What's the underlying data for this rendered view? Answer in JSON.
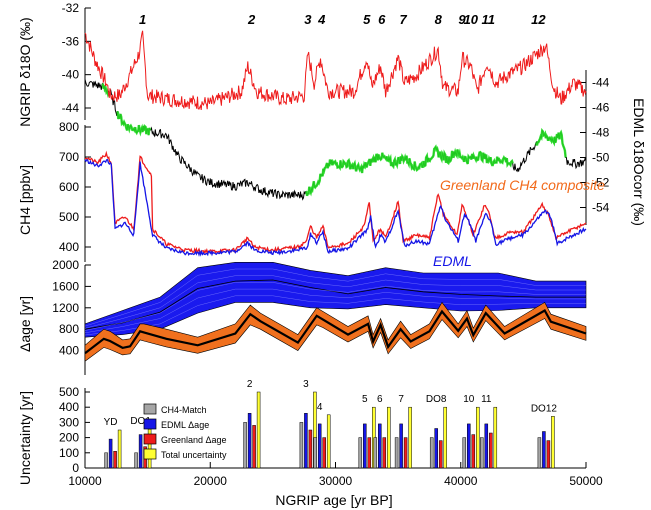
{
  "colors": {
    "red": "#ee1c1c",
    "black": "#000000",
    "green": "#22dd22",
    "blue": "#1515e6",
    "orange": "#f26a1b",
    "gray": "#a6a6a6",
    "yellow": "#ffff33",
    "bluefill": "#1a1aee",
    "orangefill": "#f0701e"
  },
  "chart_data": {
    "type": "line",
    "xlabel": "NGRIP age [yr BP]",
    "xlim": [
      10000,
      50000
    ],
    "xticks": [
      "10000",
      "20000",
      "30000",
      "40000",
      "50000"
    ],
    "do_labels": [
      {
        "t": "1",
        "x": 14600
      },
      {
        "t": "2",
        "x": 23300
      },
      {
        "t": "3",
        "x": 27800
      },
      {
        "t": "4",
        "x": 28900
      },
      {
        "t": "5",
        "x": 32500
      },
      {
        "t": "6",
        "x": 33700
      },
      {
        "t": "7",
        "x": 35400
      },
      {
        "t": "8",
        "x": 38200
      },
      {
        "t": "9",
        "x": 40100
      },
      {
        "t": "10",
        "x": 40800
      },
      {
        "t": "11",
        "x": 42200
      },
      {
        "t": "12",
        "x": 46200
      }
    ],
    "panels": {
      "ngrip": {
        "ylabel": "NGRIP δ18O (‰)",
        "ylim": [
          -44,
          -32
        ],
        "yticks": [
          "-32",
          "-36",
          "-40",
          "-44"
        ],
        "series_red_nodes": [
          [
            10000,
            -35
          ],
          [
            10800,
            -38.2
          ],
          [
            11700,
            -41
          ],
          [
            12000,
            -42.5
          ],
          [
            12800,
            -42.5
          ],
          [
            13600,
            -40
          ],
          [
            14300,
            -37.5
          ],
          [
            14600,
            -35.5
          ],
          [
            15000,
            -42.5
          ],
          [
            17000,
            -43
          ],
          [
            20000,
            -43.5
          ],
          [
            22500,
            -42
          ],
          [
            23000,
            -39
          ],
          [
            23700,
            -42
          ],
          [
            26000,
            -43
          ],
          [
            27500,
            -42.5
          ],
          [
            27800,
            -37.5
          ],
          [
            28300,
            -41
          ],
          [
            28800,
            -38
          ],
          [
            29400,
            -42
          ],
          [
            31500,
            -42
          ],
          [
            32500,
            -38
          ],
          [
            32900,
            -41.5
          ],
          [
            33600,
            -39
          ],
          [
            34000,
            -42
          ],
          [
            35000,
            -38
          ],
          [
            35500,
            -41
          ],
          [
            36500,
            -40
          ],
          [
            38200,
            -37
          ],
          [
            38600,
            -41.5
          ],
          [
            39800,
            -42
          ],
          [
            40100,
            -38
          ],
          [
            40800,
            -39
          ],
          [
            41300,
            -42
          ],
          [
            42100,
            -38.5
          ],
          [
            42800,
            -41
          ],
          [
            43800,
            -40
          ],
          [
            45000,
            -39
          ],
          [
            46800,
            -36.5
          ],
          [
            47400,
            -41.5
          ],
          [
            48000,
            -43
          ],
          [
            49000,
            -41
          ],
          [
            50000,
            -42
          ]
        ]
      },
      "edml": {
        "ylabel": "EDML δ18Ocorr (‰)",
        "ylim": [
          -55,
          -43
        ],
        "yticks": [
          "-44",
          "-46",
          "-48",
          "-50",
          "-52",
          "-54"
        ],
        "series_black_nodes": [
          [
            10000,
            -44
          ],
          [
            11300,
            -44.3
          ],
          [
            12000,
            -44.8
          ],
          [
            12600,
            -46.5
          ],
          [
            13300,
            -47.5
          ],
          [
            14600,
            -47.8
          ],
          [
            16500,
            -48.2
          ],
          [
            17500,
            -50
          ],
          [
            19000,
            -51.5
          ],
          [
            20000,
            -52
          ],
          [
            22000,
            -52.3
          ],
          [
            23000,
            -52
          ],
          [
            24000,
            -52.6
          ],
          [
            25500,
            -53
          ],
          [
            26500,
            -53
          ],
          [
            27500,
            -53
          ],
          [
            28500,
            -52
          ],
          [
            29500,
            -50.5
          ],
          [
            31000,
            -50.5
          ],
          [
            32000,
            -51
          ],
          [
            33500,
            -49.8
          ],
          [
            34500,
            -50.5
          ],
          [
            35500,
            -50
          ],
          [
            36500,
            -50.8
          ],
          [
            37000,
            -50.5
          ],
          [
            38000,
            -49.5
          ],
          [
            39000,
            -50.2
          ],
          [
            39500,
            -49.5
          ],
          [
            40500,
            -50.2
          ],
          [
            41500,
            -49.8
          ],
          [
            42500,
            -50.3
          ],
          [
            43500,
            -50.1
          ],
          [
            44500,
            -51
          ],
          [
            45200,
            -50
          ],
          [
            46500,
            -48.2
          ],
          [
            47500,
            -48.6
          ],
          [
            48000,
            -48.2
          ],
          [
            48500,
            -50.3
          ],
          [
            49200,
            -50.5
          ],
          [
            50000,
            -50.3
          ]
        ],
        "green_segments": [
          [
            [
              11400,
              11900
            ]
          ],
          [
            [
              12600,
              15200
            ]
          ],
          [
            [
              27600,
              44200
            ]
          ],
          [
            [
              46000,
              48400
            ]
          ]
        ]
      },
      "ch4": {
        "ylabel": "CH4 [ppbv]",
        "ylim": [
          350,
          850
        ],
        "yticks": [
          "800",
          "700",
          "600",
          "500",
          "400"
        ],
        "annotations": [
          "Greenland CH4 composite",
          "EDML"
        ],
        "series_red_nodes": [
          [
            10000,
            700
          ],
          [
            11000,
            680
          ],
          [
            11700,
            710
          ],
          [
            12100,
            680
          ],
          [
            12400,
            480
          ],
          [
            13200,
            500
          ],
          [
            13900,
            460
          ],
          [
            14400,
            700
          ],
          [
            15300,
            640
          ],
          [
            15400,
            460
          ],
          [
            16500,
            410
          ],
          [
            18000,
            390
          ],
          [
            20000,
            385
          ],
          [
            22000,
            390
          ],
          [
            23000,
            430
          ],
          [
            23500,
            400
          ],
          [
            25000,
            390
          ],
          [
            27000,
            400
          ],
          [
            27700,
            420
          ],
          [
            28000,
            470
          ],
          [
            28500,
            430
          ],
          [
            29000,
            470
          ],
          [
            29400,
            400
          ],
          [
            31000,
            410
          ],
          [
            32300,
            470
          ],
          [
            32700,
            550
          ],
          [
            33000,
            420
          ],
          [
            33600,
            460
          ],
          [
            34000,
            430
          ],
          [
            35000,
            550
          ],
          [
            35400,
            420
          ],
          [
            36500,
            440
          ],
          [
            37500,
            430
          ],
          [
            38200,
            580
          ],
          [
            38600,
            510
          ],
          [
            39700,
            440
          ],
          [
            40100,
            540
          ],
          [
            40500,
            500
          ],
          [
            41000,
            440
          ],
          [
            41900,
            540
          ],
          [
            42300,
            510
          ],
          [
            42700,
            430
          ],
          [
            44000,
            450
          ],
          [
            45000,
            450
          ],
          [
            46500,
            540
          ],
          [
            47000,
            510
          ],
          [
            47600,
            430
          ],
          [
            48500,
            450
          ],
          [
            50000,
            480
          ]
        ],
        "series_blue_nodes": [
          [
            10000,
            690
          ],
          [
            11000,
            670
          ],
          [
            11800,
            690
          ],
          [
            12100,
            670
          ],
          [
            12400,
            460
          ],
          [
            13200,
            480
          ],
          [
            13900,
            440
          ],
          [
            14400,
            680
          ],
          [
            15400,
            440
          ],
          [
            16500,
            395
          ],
          [
            18000,
            380
          ],
          [
            20000,
            380
          ],
          [
            22000,
            385
          ],
          [
            23000,
            415
          ],
          [
            23500,
            390
          ],
          [
            25000,
            380
          ],
          [
            27000,
            390
          ],
          [
            27800,
            400
          ],
          [
            28000,
            445
          ],
          [
            28500,
            415
          ],
          [
            29000,
            450
          ],
          [
            29400,
            385
          ],
          [
            31000,
            395
          ],
          [
            32500,
            455
          ],
          [
            32800,
            500
          ],
          [
            33200,
            400
          ],
          [
            33600,
            440
          ],
          [
            34000,
            415
          ],
          [
            35000,
            520
          ],
          [
            35500,
            405
          ],
          [
            36500,
            420
          ],
          [
            37500,
            410
          ],
          [
            38400,
            540
          ],
          [
            38800,
            490
          ],
          [
            39800,
            420
          ],
          [
            40300,
            510
          ],
          [
            40700,
            480
          ],
          [
            41200,
            420
          ],
          [
            42000,
            510
          ],
          [
            42400,
            485
          ],
          [
            42800,
            410
          ],
          [
            44000,
            430
          ],
          [
            45000,
            440
          ],
          [
            46700,
            520
          ],
          [
            47200,
            500
          ],
          [
            47700,
            410
          ],
          [
            48500,
            430
          ],
          [
            50000,
            460
          ]
        ]
      },
      "delta_age": {
        "ylabel": "Δage [yr]",
        "ylim": [
          0,
          2000
        ],
        "yticks": [
          "2000",
          "1600",
          "1200",
          "800",
          "400"
        ],
        "blue_band": {
          "x": [
            10000,
            13000,
            16000,
            19000,
            22000,
            25000,
            28000,
            31000,
            34000,
            37000,
            40000,
            43000,
            46000,
            50000
          ],
          "upper": [
            900,
            1150,
            1400,
            1950,
            2050,
            2050,
            1900,
            1800,
            1950,
            1850,
            1850,
            1850,
            1700,
            1700
          ],
          "center": [
            800,
            920,
            1120,
            1560,
            1700,
            1720,
            1580,
            1460,
            1580,
            1500,
            1450,
            1420,
            1400,
            1400
          ],
          "lower": [
            650,
            700,
            800,
            1100,
            1300,
            1300,
            1200,
            1180,
            1260,
            1200,
            1140,
            1150,
            1200,
            1200
          ]
        },
        "orange_band": {
          "x": [
            10000,
            11500,
            12000,
            13000,
            13600,
            14400,
            14700,
            16500,
            19000,
            22000,
            23200,
            24000,
            27000,
            28500,
            29000,
            31000,
            32600,
            33000,
            33600,
            34200,
            35200,
            36000,
            37500,
            38500,
            39800,
            40500,
            41000,
            42000,
            43500,
            46700,
            47200,
            50000
          ],
          "upper": [
            500,
            800,
            760,
            600,
            620,
            900,
            900,
            800,
            650,
            900,
            1250,
            1100,
            700,
            1200,
            1130,
            850,
            1050,
            700,
            1000,
            600,
            950,
            700,
            900,
            1300,
            900,
            1150,
            820,
            1250,
            850,
            1300,
            1080,
            850
          ],
          "center": [
            350,
            620,
            580,
            450,
            480,
            760,
            740,
            620,
            500,
            720,
            1080,
            950,
            550,
            1050,
            980,
            700,
            900,
            570,
            880,
            470,
            800,
            570,
            760,
            1130,
            770,
            1000,
            690,
            1100,
            720,
            1150,
            940,
            720
          ],
          "lower": [
            200,
            460,
            420,
            320,
            340,
            600,
            580,
            470,
            350,
            540,
            880,
            800,
            400,
            880,
            830,
            560,
            760,
            450,
            740,
            340,
            640,
            440,
            620,
            980,
            640,
            850,
            560,
            960,
            600,
            1000,
            800,
            590
          ]
        }
      },
      "uncertainty": {
        "ylabel": "Uncertainty [yr]",
        "ylim": [
          0,
          500
        ],
        "yticks": [
          "500",
          "400",
          "300",
          "200",
          "100",
          "0"
        ],
        "legend": [
          "CH4-Match",
          "EDML Δage",
          "Greenland Δage",
          "Total uncertainty"
        ],
        "groups": [
          {
            "label": "YD",
            "x": 12200,
            "vals": [
              100,
              190,
              110,
              250
            ]
          },
          {
            "label": "DO1",
            "x": 14600,
            "vals": [
              100,
              220,
              140,
              255
            ]
          },
          {
            "label": "2",
            "x": 23300,
            "vals": [
              300,
              360,
              280,
              500
            ]
          },
          {
            "label": "3",
            "x": 27800,
            "vals": [
              300,
              360,
              250,
              500
            ]
          },
          {
            "label": "4",
            "x": 28900,
            "vals": [
              200,
              290,
              200,
              350
            ]
          },
          {
            "label": "5",
            "x": 32500,
            "vals": [
              200,
              290,
              200,
              400
            ]
          },
          {
            "label": "6",
            "x": 33700,
            "vals": [
              200,
              290,
              200,
              400
            ]
          },
          {
            "label": "7",
            "x": 35400,
            "vals": [
              200,
              290,
              200,
              400
            ]
          },
          {
            "label": "DO8",
            "x": 38200,
            "vals": [
              200,
              260,
              180,
              400
            ]
          },
          {
            "label": "10",
            "x": 40800,
            "vals": [
              200,
              290,
              220,
              400
            ]
          },
          {
            "label": "11",
            "x": 42200,
            "vals": [
              200,
              290,
              230,
              400
            ]
          },
          {
            "label": "DO12",
            "x": 46800,
            "vals": [
              200,
              240,
              180,
              340
            ]
          }
        ]
      }
    }
  }
}
